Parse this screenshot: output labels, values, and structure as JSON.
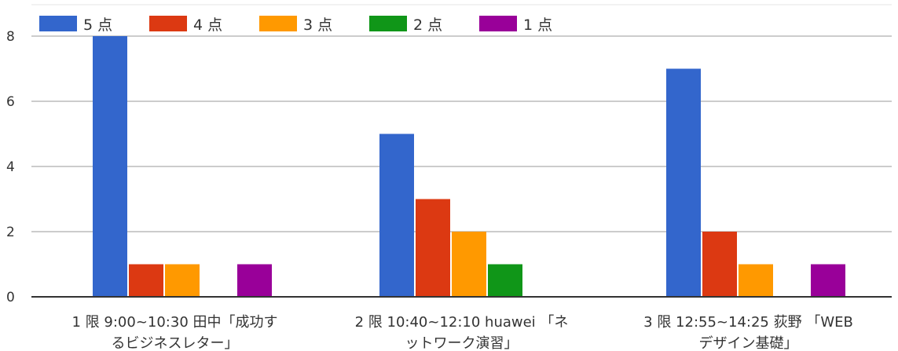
{
  "chart_data": {
    "type": "bar",
    "categories": [
      [
        "1 限 9:00~10:30 田中「成功す",
        "るビジネスレター」"
      ],
      [
        "2 限 10:40~12:10 huawei 「ネ",
        "ットワーク演習」"
      ],
      [
        "3 限 12:55~14:25 荻野 「WEB",
        "デザイン基礎」"
      ]
    ],
    "series": [
      {
        "name": "5 点",
        "color": "#3366cc",
        "values": [
          8,
          5,
          7
        ]
      },
      {
        "name": "4 点",
        "color": "#dc3912",
        "values": [
          1,
          3,
          2
        ]
      },
      {
        "name": "3 点",
        "color": "#ff9900",
        "values": [
          1,
          2,
          1
        ]
      },
      {
        "name": "2 点",
        "color": "#109618",
        "values": [
          0,
          1,
          0
        ]
      },
      {
        "name": "1 点",
        "color": "#990099",
        "values": [
          1,
          0,
          1
        ]
      }
    ],
    "y_ticks": [
      0,
      2,
      4,
      6,
      8
    ],
    "ylim": [
      0,
      8
    ],
    "grid": true,
    "legend_position": "top-left"
  }
}
